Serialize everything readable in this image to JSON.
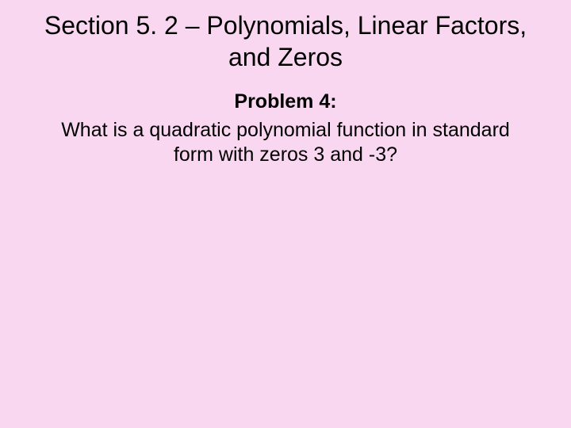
{
  "slide": {
    "title": "Section 5. 2 – Polynomials, Linear Factors, and Zeros",
    "problem_label": "Problem 4:",
    "problem_text": "What is a quadratic polynomial function in standard form with zeros 3 and -3?",
    "background_color": "#fad7f1",
    "text_color": "#000000",
    "title_fontsize": 32,
    "body_fontsize": 25,
    "font_family": "Arial"
  }
}
